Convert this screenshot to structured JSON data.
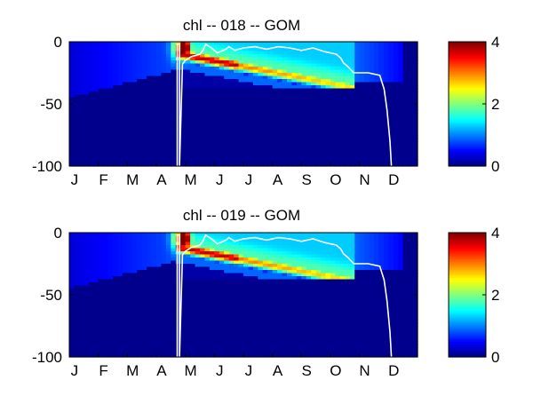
{
  "chart_data": [
    {
      "type": "heatmap",
      "title": "chl -- 018 -- GOM",
      "xlabel": "",
      "ylabel": "",
      "x_tick_labels": [
        "J",
        "F",
        "M",
        "A",
        "M",
        "J",
        "J",
        "A",
        "S",
        "O",
        "N",
        "D"
      ],
      "xlim": [
        0,
        12
      ],
      "ylim": [
        -100,
        0
      ],
      "y_ticks": [
        0,
        -50,
        -100
      ],
      "y_tick_labels": [
        "0",
        "-50",
        "-100"
      ],
      "colormap": "jet",
      "clim": [
        0,
        4
      ],
      "colorbar_ticks": [
        0,
        2,
        4
      ],
      "colorbar_tick_labels": [
        "0",
        "2",
        "4"
      ],
      "overlay_line": {
        "color": "#ffffff",
        "description_months_x": [
          0,
          0.0
        ],
        "x": [
          3.72,
          3.72,
          3.8,
          3.8,
          3.9,
          4.0,
          4.2,
          4.5,
          4.6,
          4.7,
          4.9,
          5.1,
          5.4,
          5.5,
          5.7,
          6.0,
          6.4,
          6.8,
          7.2,
          7.6,
          8.0,
          8.4,
          8.8,
          9.2,
          9.35,
          9.45,
          9.6,
          9.8,
          10.3,
          10.7,
          10.85,
          10.95,
          11.05,
          11.1
        ],
        "y": [
          -100,
          -2,
          -2,
          -100,
          -18,
          -15,
          -12,
          -10,
          -7,
          -2,
          -5,
          -9,
          -6,
          -4,
          -7,
          -5,
          -4,
          -6,
          -4,
          -5,
          -7,
          -5,
          -8,
          -10,
          -13,
          -17,
          -20,
          -25,
          -25,
          -27,
          -38,
          -55,
          -80,
          -100
        ]
      }
    },
    {
      "type": "heatmap",
      "title": "chl -- 019 -- GOM",
      "xlabel": "",
      "ylabel": "",
      "x_tick_labels": [
        "J",
        "F",
        "M",
        "A",
        "M",
        "J",
        "J",
        "A",
        "S",
        "O",
        "N",
        "D"
      ],
      "xlim": [
        0,
        12
      ],
      "ylim": [
        -100,
        0
      ],
      "y_ticks": [
        0,
        -50,
        -100
      ],
      "y_tick_labels": [
        "0",
        "-50",
        "-100"
      ],
      "colormap": "jet",
      "clim": [
        0,
        4
      ],
      "colorbar_ticks": [
        0,
        2,
        4
      ],
      "colorbar_tick_labels": [
        "0",
        "2",
        "4"
      ],
      "overlay_line": {
        "color": "#ffffff",
        "x": [
          3.72,
          3.72,
          3.8,
          3.8,
          3.9,
          4.0,
          4.2,
          4.5,
          4.6,
          4.7,
          4.9,
          5.1,
          5.4,
          5.5,
          5.7,
          6.0,
          6.4,
          6.8,
          7.2,
          7.6,
          8.0,
          8.4,
          8.8,
          9.2,
          9.35,
          9.45,
          9.6,
          9.8,
          10.3,
          10.7,
          10.85,
          10.95,
          11.05,
          11.1
        ],
        "y": [
          -100,
          -2,
          -2,
          -100,
          -18,
          -15,
          -12,
          -10,
          -7,
          -2,
          -5,
          -9,
          -6,
          -4,
          -7,
          -5,
          -4,
          -6,
          -4,
          -5,
          -7,
          -5,
          -8,
          -10,
          -13,
          -17,
          -20,
          -25,
          -25,
          -27,
          -38,
          -55,
          -80,
          -100
        ]
      }
    }
  ]
}
